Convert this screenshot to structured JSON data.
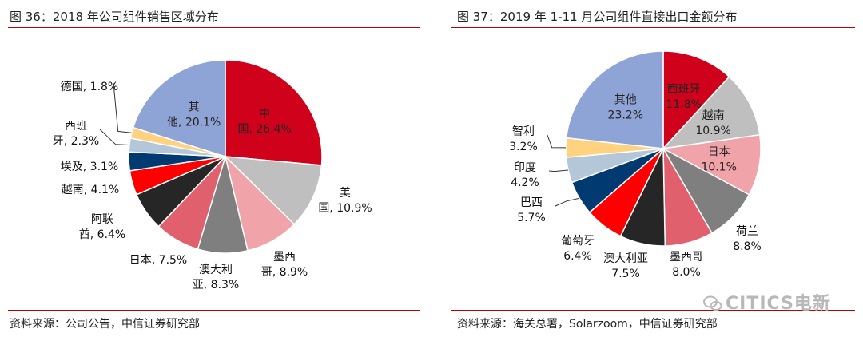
{
  "chart_data": [
    {
      "type": "pie",
      "title": "图 36：2018 年公司组件销售区域分布",
      "source": "资料来源：公司公告，中信证券研究部",
      "slices": [
        {
          "name": "中国",
          "value": 26.4,
          "pct": "26.4%",
          "lines": [
            "中",
            "国, 26.4%"
          ],
          "color": "#d0021b",
          "inside": true,
          "textColor": "#222222"
        },
        {
          "name": "美国",
          "value": 10.9,
          "pct": "10.9%",
          "lines": [
            "美",
            "国, 10.9%"
          ],
          "color": "#bfbfbf",
          "inside": false
        },
        {
          "name": "墨西哥",
          "value": 8.9,
          "pct": "8.9%",
          "lines": [
            "墨西",
            "哥, 8.9%"
          ],
          "color": "#f0a3a8",
          "inside": false
        },
        {
          "name": "澳大利亚",
          "value": 8.3,
          "pct": "8.3%",
          "lines": [
            "澳大利",
            "亚, 8.3%"
          ],
          "color": "#7f7f7f",
          "inside": false
        },
        {
          "name": "日本",
          "value": 7.5,
          "pct": "7.5%",
          "lines": [
            "日本, 7.5%"
          ],
          "color": "#e0606e",
          "inside": false
        },
        {
          "name": "阿联酋",
          "value": 6.4,
          "pct": "6.4%",
          "lines": [
            "阿联",
            "酋, 6.4%"
          ],
          "color": "#262626",
          "inside": false
        },
        {
          "name": "越南",
          "value": 4.1,
          "pct": "4.1%",
          "lines": [
            "越南, 4.1%"
          ],
          "color": "#ff0000",
          "inside": false
        },
        {
          "name": "埃及",
          "value": 3.1,
          "pct": "3.1%",
          "lines": [
            "埃及, 3.1%"
          ],
          "color": "#003a70",
          "inside": false
        },
        {
          "name": "西班牙",
          "value": 2.3,
          "pct": "2.3%",
          "lines": [
            "西班",
            "牙, 2.3%"
          ],
          "color": "#b4c7d9",
          "inside": false,
          "leader": true
        },
        {
          "name": "德国",
          "value": 1.8,
          "pct": "1.8%",
          "lines": [
            "德国, 1.8%"
          ],
          "color": "#ffd27f",
          "inside": false,
          "leader": true
        },
        {
          "name": "其他",
          "value": 20.1,
          "pct": "20.1%",
          "lines": [
            "其",
            "他, 20.1%"
          ],
          "color": "#8ea3d6",
          "inside": true,
          "textColor": "#222222"
        }
      ]
    },
    {
      "type": "pie",
      "title": "图 37：2019 年 1-11 月公司组件直接出口金额分布",
      "source": "资料来源：海关总署，Solarzoom，中信证券研究部",
      "slices": [
        {
          "name": "西班牙",
          "value": 11.8,
          "pct": "11.8%",
          "lines": [
            "西班牙",
            "11.8%"
          ],
          "color": "#d0021b",
          "inside": true,
          "textColor": "#222222"
        },
        {
          "name": "越南",
          "value": 10.9,
          "pct": "10.9%",
          "lines": [
            "越南",
            "10.9%"
          ],
          "color": "#bfbfbf",
          "inside": true,
          "textColor": "#222222"
        },
        {
          "name": "日本",
          "value": 10.1,
          "pct": "10.1%",
          "lines": [
            "日本",
            "10.1%"
          ],
          "color": "#f0a3a8",
          "inside": true,
          "textColor": "#222222"
        },
        {
          "name": "荷兰",
          "value": 8.8,
          "pct": "8.8%",
          "lines": [
            "荷兰",
            "8.8%"
          ],
          "color": "#7f7f7f",
          "inside": false
        },
        {
          "name": "墨西哥",
          "value": 8.0,
          "pct": "8.0%",
          "lines": [
            "墨西哥",
            "8.0%"
          ],
          "color": "#e0606e",
          "inside": false
        },
        {
          "name": "澳大利亚",
          "value": 7.5,
          "pct": "7.5%",
          "lines": [
            "澳大利亚",
            "7.5%"
          ],
          "color": "#262626",
          "inside": false
        },
        {
          "name": "葡萄牙",
          "value": 6.4,
          "pct": "6.4%",
          "lines": [
            "葡萄牙",
            "6.4%"
          ],
          "color": "#ff0000",
          "inside": false
        },
        {
          "name": "巴西",
          "value": 5.7,
          "pct": "5.7%",
          "lines": [
            "巴西",
            "5.7%"
          ],
          "color": "#003a70",
          "inside": false,
          "leader": true
        },
        {
          "name": "印度",
          "value": 4.2,
          "pct": "4.2%",
          "lines": [
            "印度",
            "4.2%"
          ],
          "color": "#b4c7d9",
          "inside": false,
          "leader": true
        },
        {
          "name": "智利",
          "value": 3.2,
          "pct": "3.2%",
          "lines": [
            "智利",
            "3.2%"
          ],
          "color": "#ffd27f",
          "inside": false,
          "leader": true
        },
        {
          "name": "其他",
          "value": 23.2,
          "pct": "23.2%",
          "lines": [
            "其他",
            "23.2%"
          ],
          "color": "#8ea3d6",
          "inside": true,
          "textColor": "#222222"
        }
      ]
    }
  ],
  "watermark": "CITICS电新",
  "colors": {
    "rule": "#c00000"
  }
}
